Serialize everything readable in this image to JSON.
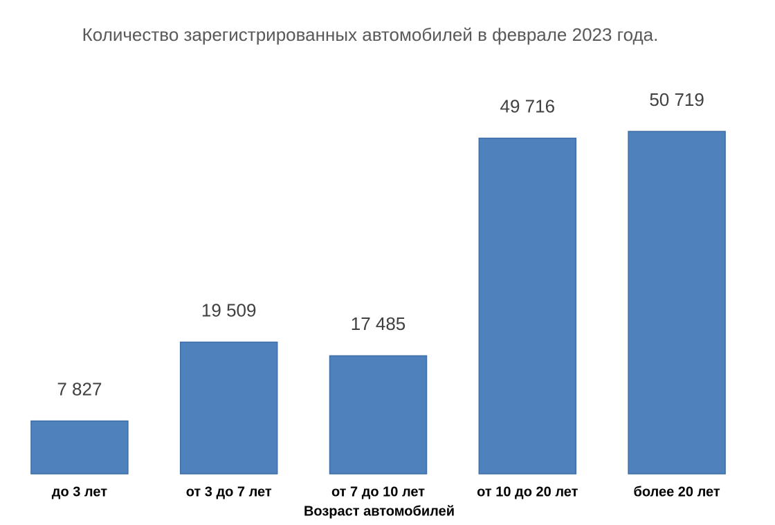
{
  "chart_data": {
    "type": "bar",
    "title": "Количество зарегистрированных автомобилей в феврале 2023 года.",
    "x_label": "Возраст автомобилей",
    "categories": [
      "до 3 лет",
      "от 3 до 7 лет",
      "от 7 до 10 лет",
      "от 10 до 20 лет",
      "более 20 лет"
    ],
    "values": [
      7827,
      19509,
      17485,
      49716,
      50719
    ],
    "value_labels": [
      "7 827",
      "19 509",
      "17 485",
      "49 716",
      "50 719"
    ],
    "color": "#4f81bd"
  }
}
